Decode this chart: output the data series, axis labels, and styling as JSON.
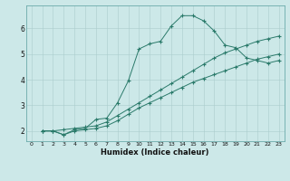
{
  "xlabel": "Humidex (Indice chaleur)",
  "ylabel": "",
  "background_color": "#cce8e8",
  "grid_color": "#aacccc",
  "line_color": "#2a7a6a",
  "xlim": [
    -0.5,
    23.5
  ],
  "ylim": [
    1.6,
    6.9
  ],
  "xticks": [
    0,
    1,
    2,
    3,
    4,
    5,
    6,
    7,
    8,
    9,
    10,
    11,
    12,
    13,
    14,
    15,
    16,
    17,
    18,
    19,
    20,
    21,
    22,
    23
  ],
  "yticks": [
    2,
    3,
    4,
    5,
    6
  ],
  "lines": [
    {
      "x": [
        1,
        2,
        3,
        4,
        5,
        6,
        7,
        8,
        9,
        10,
        11,
        12,
        13,
        14,
        15,
        16,
        17,
        18,
        19,
        20,
        21,
        22,
        23
      ],
      "y": [
        2.0,
        2.0,
        1.85,
        2.05,
        2.1,
        2.45,
        2.5,
        3.1,
        3.95,
        5.2,
        5.4,
        5.5,
        6.1,
        6.5,
        6.5,
        6.3,
        5.9,
        5.35,
        5.25,
        4.85,
        4.75,
        4.65,
        4.75
      ]
    },
    {
      "x": [
        1,
        2,
        3,
        4,
        5,
        6,
        7,
        8,
        9,
        10,
        11,
        12,
        13,
        14,
        15,
        16,
        17,
        18,
        19,
        20,
        21,
        22,
        23
      ],
      "y": [
        2.0,
        2.0,
        2.05,
        2.1,
        2.15,
        2.2,
        2.35,
        2.6,
        2.85,
        3.1,
        3.35,
        3.6,
        3.85,
        4.1,
        4.35,
        4.6,
        4.85,
        5.05,
        5.2,
        5.35,
        5.5,
        5.6,
        5.7
      ]
    },
    {
      "x": [
        1,
        2,
        3,
        4,
        5,
        6,
        7,
        8,
        9,
        10,
        11,
        12,
        13,
        14,
        15,
        16,
        17,
        18,
        19,
        20,
        21,
        22,
        23
      ],
      "y": [
        2.0,
        2.0,
        1.85,
        2.0,
        2.05,
        2.1,
        2.2,
        2.4,
        2.65,
        2.9,
        3.1,
        3.3,
        3.5,
        3.7,
        3.9,
        4.05,
        4.2,
        4.35,
        4.5,
        4.65,
        4.8,
        4.9,
        5.0
      ]
    }
  ]
}
